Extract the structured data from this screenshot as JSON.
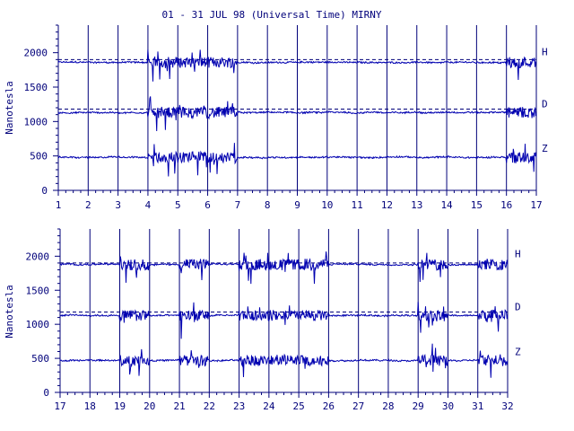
{
  "colors": {
    "ink": "#00007a",
    "trace": "#0000b0",
    "background": "#ffffff"
  },
  "chart_data": [
    {
      "type": "line",
      "title": "01 - 31 JUL 98 (Universal Time) MIRNY",
      "ylabel": "Nanotesla",
      "xlim": [
        1,
        17
      ],
      "ylim": [
        0,
        2400
      ],
      "x_ticks": [
        "1",
        "2",
        "3",
        "4",
        "5",
        "6",
        "7",
        "8",
        "9",
        "10",
        "11",
        "12",
        "13",
        "14",
        "15",
        "16",
        "17"
      ],
      "y_ticks": [
        "0",
        "500",
        "1000",
        "1500",
        "2000"
      ],
      "grid": "vertical lines at each day",
      "series": [
        {
          "name": "H",
          "baseline": 1860,
          "reference_line": 1900,
          "style": "dashed reference at quiet level"
        },
        {
          "name": "D",
          "baseline": 1130,
          "reference_line": 1180,
          "style": "dashed reference at quiet level"
        },
        {
          "name": "Z",
          "baseline": 480,
          "style": "no reference line"
        }
      ],
      "disturbed_days": [
        4,
        5,
        6,
        16
      ]
    },
    {
      "type": "line",
      "title": "",
      "ylabel": "Nanotesla",
      "xlim": [
        17,
        32
      ],
      "ylim": [
        0,
        2400
      ],
      "x_ticks": [
        "17",
        "18",
        "19",
        "20",
        "21",
        "22",
        "23",
        "24",
        "25",
        "26",
        "27",
        "28",
        "29",
        "30",
        "31",
        "32"
      ],
      "y_ticks": [
        "0",
        "500",
        "1000",
        "1500",
        "2000"
      ],
      "grid": "vertical lines at each day",
      "series": [
        {
          "name": "H",
          "baseline": 1880,
          "reference_line": 1900,
          "style": "dashed reference at quiet level"
        },
        {
          "name": "D",
          "baseline": 1130,
          "reference_line": 1180,
          "style": "dashed reference at quiet level"
        },
        {
          "name": "Z",
          "baseline": 470,
          "style": "no reference line"
        }
      ],
      "disturbed_days": [
        19,
        21,
        23,
        24,
        25,
        29,
        31
      ]
    }
  ]
}
